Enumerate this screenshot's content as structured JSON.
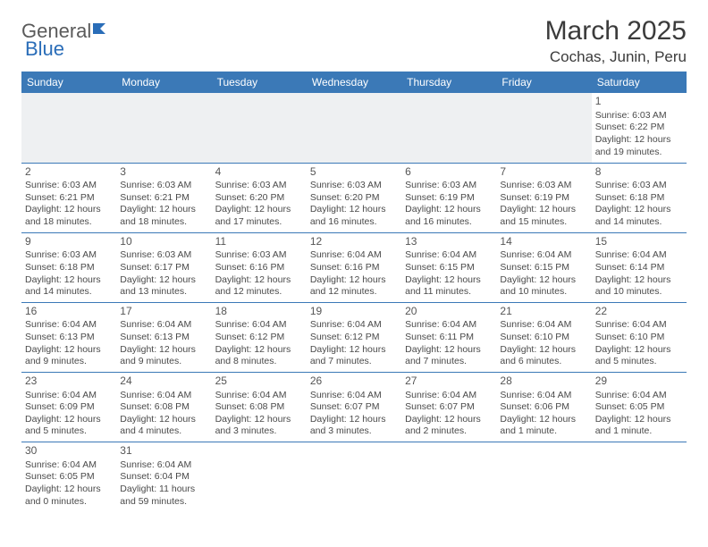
{
  "logo": {
    "part1": "General",
    "part2": "Blue"
  },
  "title": "March 2025",
  "location": "Cochas, Junin, Peru",
  "colors": {
    "header_bg": "#3b79b7",
    "header_text": "#ffffff",
    "border": "#3b79b7",
    "logo_gray": "#5a5a5a",
    "logo_blue": "#2a6db8",
    "page_text": "#3b3b3b",
    "cell_text": "#4a4a4a"
  },
  "weekdays": [
    "Sunday",
    "Monday",
    "Tuesday",
    "Wednesday",
    "Thursday",
    "Friday",
    "Saturday"
  ],
  "weeks": [
    [
      null,
      null,
      null,
      null,
      null,
      null,
      {
        "n": "1",
        "sr": "Sunrise: 6:03 AM",
        "ss": "Sunset: 6:22 PM",
        "dl": "Daylight: 12 hours and 19 minutes."
      }
    ],
    [
      {
        "n": "2",
        "sr": "Sunrise: 6:03 AM",
        "ss": "Sunset: 6:21 PM",
        "dl": "Daylight: 12 hours and 18 minutes."
      },
      {
        "n": "3",
        "sr": "Sunrise: 6:03 AM",
        "ss": "Sunset: 6:21 PM",
        "dl": "Daylight: 12 hours and 18 minutes."
      },
      {
        "n": "4",
        "sr": "Sunrise: 6:03 AM",
        "ss": "Sunset: 6:20 PM",
        "dl": "Daylight: 12 hours and 17 minutes."
      },
      {
        "n": "5",
        "sr": "Sunrise: 6:03 AM",
        "ss": "Sunset: 6:20 PM",
        "dl": "Daylight: 12 hours and 16 minutes."
      },
      {
        "n": "6",
        "sr": "Sunrise: 6:03 AM",
        "ss": "Sunset: 6:19 PM",
        "dl": "Daylight: 12 hours and 16 minutes."
      },
      {
        "n": "7",
        "sr": "Sunrise: 6:03 AM",
        "ss": "Sunset: 6:19 PM",
        "dl": "Daylight: 12 hours and 15 minutes."
      },
      {
        "n": "8",
        "sr": "Sunrise: 6:03 AM",
        "ss": "Sunset: 6:18 PM",
        "dl": "Daylight: 12 hours and 14 minutes."
      }
    ],
    [
      {
        "n": "9",
        "sr": "Sunrise: 6:03 AM",
        "ss": "Sunset: 6:18 PM",
        "dl": "Daylight: 12 hours and 14 minutes."
      },
      {
        "n": "10",
        "sr": "Sunrise: 6:03 AM",
        "ss": "Sunset: 6:17 PM",
        "dl": "Daylight: 12 hours and 13 minutes."
      },
      {
        "n": "11",
        "sr": "Sunrise: 6:03 AM",
        "ss": "Sunset: 6:16 PM",
        "dl": "Daylight: 12 hours and 12 minutes."
      },
      {
        "n": "12",
        "sr": "Sunrise: 6:04 AM",
        "ss": "Sunset: 6:16 PM",
        "dl": "Daylight: 12 hours and 12 minutes."
      },
      {
        "n": "13",
        "sr": "Sunrise: 6:04 AM",
        "ss": "Sunset: 6:15 PM",
        "dl": "Daylight: 12 hours and 11 minutes."
      },
      {
        "n": "14",
        "sr": "Sunrise: 6:04 AM",
        "ss": "Sunset: 6:15 PM",
        "dl": "Daylight: 12 hours and 10 minutes."
      },
      {
        "n": "15",
        "sr": "Sunrise: 6:04 AM",
        "ss": "Sunset: 6:14 PM",
        "dl": "Daylight: 12 hours and 10 minutes."
      }
    ],
    [
      {
        "n": "16",
        "sr": "Sunrise: 6:04 AM",
        "ss": "Sunset: 6:13 PM",
        "dl": "Daylight: 12 hours and 9 minutes."
      },
      {
        "n": "17",
        "sr": "Sunrise: 6:04 AM",
        "ss": "Sunset: 6:13 PM",
        "dl": "Daylight: 12 hours and 9 minutes."
      },
      {
        "n": "18",
        "sr": "Sunrise: 6:04 AM",
        "ss": "Sunset: 6:12 PM",
        "dl": "Daylight: 12 hours and 8 minutes."
      },
      {
        "n": "19",
        "sr": "Sunrise: 6:04 AM",
        "ss": "Sunset: 6:12 PM",
        "dl": "Daylight: 12 hours and 7 minutes."
      },
      {
        "n": "20",
        "sr": "Sunrise: 6:04 AM",
        "ss": "Sunset: 6:11 PM",
        "dl": "Daylight: 12 hours and 7 minutes."
      },
      {
        "n": "21",
        "sr": "Sunrise: 6:04 AM",
        "ss": "Sunset: 6:10 PM",
        "dl": "Daylight: 12 hours and 6 minutes."
      },
      {
        "n": "22",
        "sr": "Sunrise: 6:04 AM",
        "ss": "Sunset: 6:10 PM",
        "dl": "Daylight: 12 hours and 5 minutes."
      }
    ],
    [
      {
        "n": "23",
        "sr": "Sunrise: 6:04 AM",
        "ss": "Sunset: 6:09 PM",
        "dl": "Daylight: 12 hours and 5 minutes."
      },
      {
        "n": "24",
        "sr": "Sunrise: 6:04 AM",
        "ss": "Sunset: 6:08 PM",
        "dl": "Daylight: 12 hours and 4 minutes."
      },
      {
        "n": "25",
        "sr": "Sunrise: 6:04 AM",
        "ss": "Sunset: 6:08 PM",
        "dl": "Daylight: 12 hours and 3 minutes."
      },
      {
        "n": "26",
        "sr": "Sunrise: 6:04 AM",
        "ss": "Sunset: 6:07 PM",
        "dl": "Daylight: 12 hours and 3 minutes."
      },
      {
        "n": "27",
        "sr": "Sunrise: 6:04 AM",
        "ss": "Sunset: 6:07 PM",
        "dl": "Daylight: 12 hours and 2 minutes."
      },
      {
        "n": "28",
        "sr": "Sunrise: 6:04 AM",
        "ss": "Sunset: 6:06 PM",
        "dl": "Daylight: 12 hours and 1 minute."
      },
      {
        "n": "29",
        "sr": "Sunrise: 6:04 AM",
        "ss": "Sunset: 6:05 PM",
        "dl": "Daylight: 12 hours and 1 minute."
      }
    ],
    [
      {
        "n": "30",
        "sr": "Sunrise: 6:04 AM",
        "ss": "Sunset: 6:05 PM",
        "dl": "Daylight: 12 hours and 0 minutes."
      },
      {
        "n": "31",
        "sr": "Sunrise: 6:04 AM",
        "ss": "Sunset: 6:04 PM",
        "dl": "Daylight: 11 hours and 59 minutes."
      },
      null,
      null,
      null,
      null,
      null
    ]
  ]
}
